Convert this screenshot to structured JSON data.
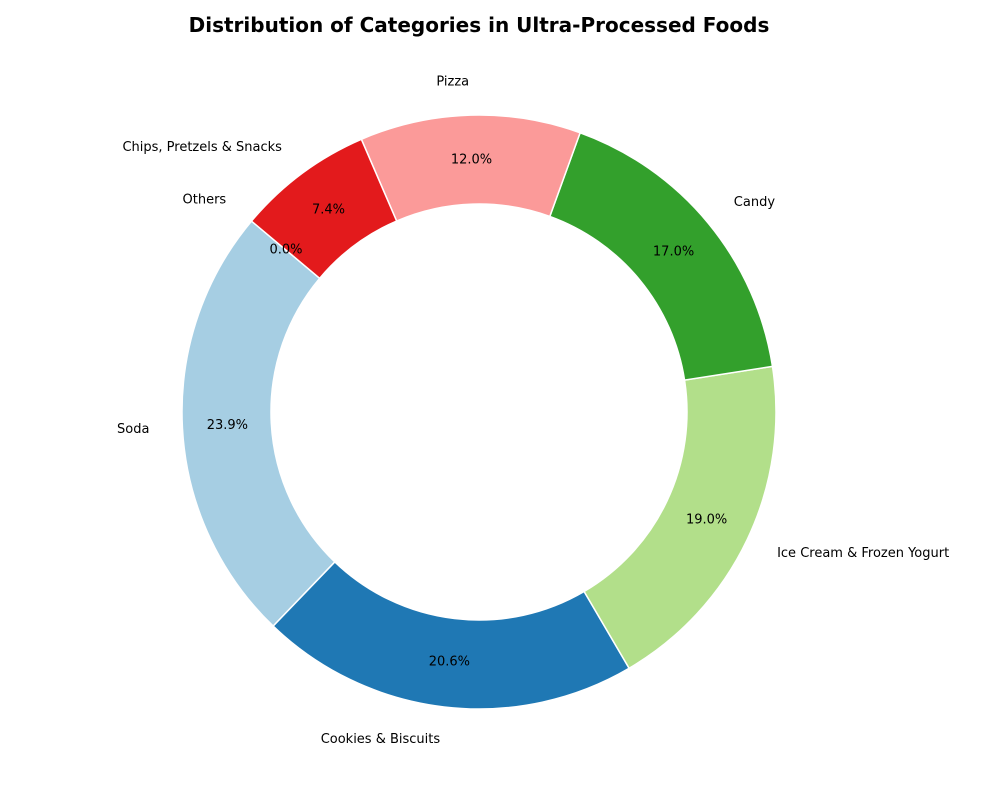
{
  "chart_data": {
    "type": "pie",
    "style": "donut",
    "title": "Distribution of Categories in Ultra-Processed Foods",
    "categories": [
      "Soda",
      "Cookies & Biscuits",
      "Ice Cream & Frozen Yogurt",
      "Candy",
      "Pizza",
      "Chips, Pretzels & Snacks",
      "Others"
    ],
    "values": [
      23.9,
      20.6,
      19.0,
      17.0,
      12.0,
      7.4,
      0.0
    ],
    "value_labels": [
      "23.9%",
      "20.6%",
      "19.0%",
      "17.0%",
      "12.0%",
      "7.4%",
      "0.0%"
    ],
    "colors": [
      "#a6cee3",
      "#1f78b4",
      "#b2df8a",
      "#33a02c",
      "#fb9a99",
      "#e31a1c",
      "#fdbf6f"
    ],
    "start_angle_deg": 140,
    "direction": "counterclockwise",
    "legend": "none"
  }
}
